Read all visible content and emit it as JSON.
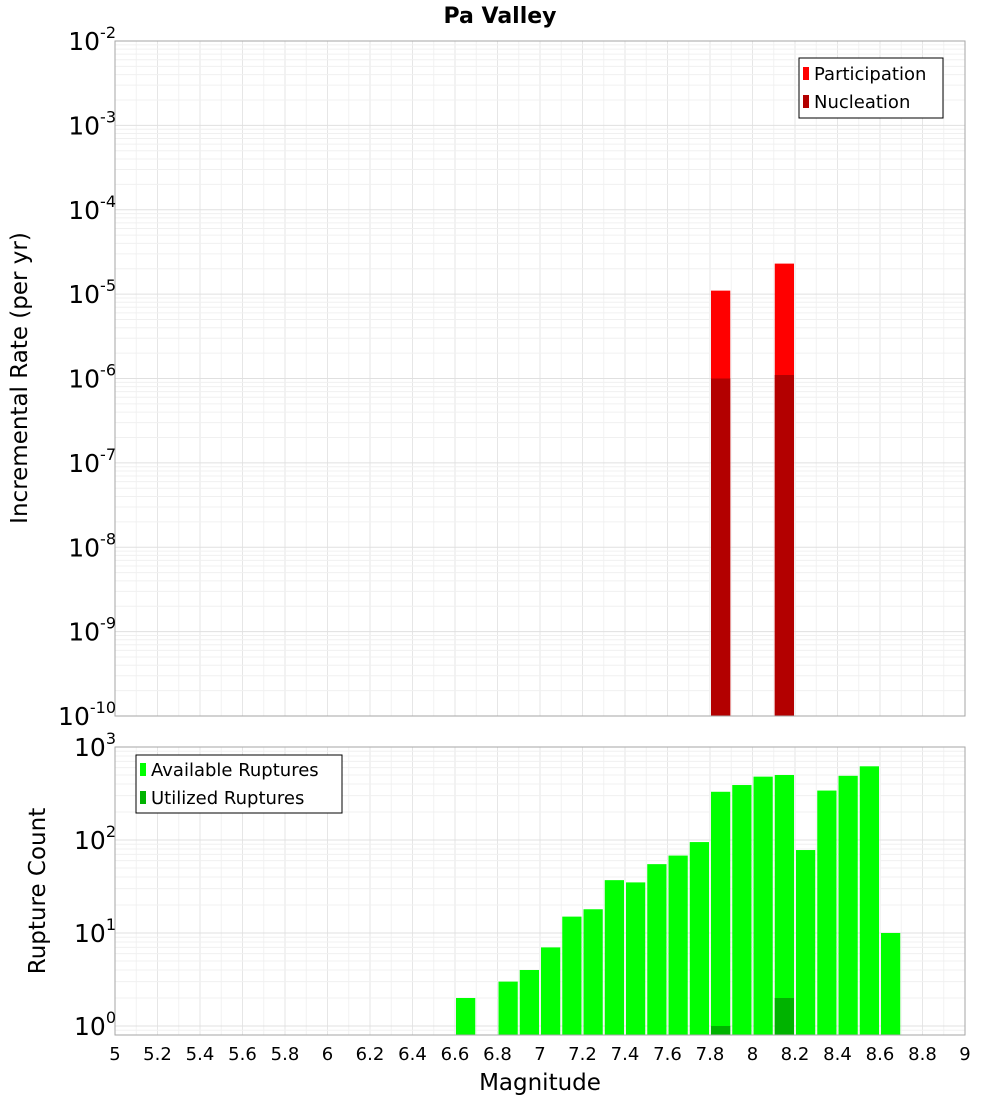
{
  "title": "Pa Valley",
  "xlabel": "Magnitude",
  "chart_data": [
    {
      "type": "bar",
      "name": "rate-panel",
      "title": "Pa Valley",
      "ylabel": "Incremental Rate (per yr)",
      "yscale": "log",
      "ylim": [
        1e-10,
        0.01
      ],
      "xlim": [
        5,
        9
      ],
      "bin_width": 0.1,
      "legend": "top-right",
      "grid": true,
      "series": [
        {
          "name": "Participation",
          "color": "#ff0000",
          "x": [
            7.85,
            8.15
          ],
          "values": [
            1.1e-05,
            2.3e-05
          ]
        },
        {
          "name": "Nucleation",
          "color": "#b30000",
          "x": [
            7.85,
            8.15
          ],
          "values": [
            1e-06,
            1.1e-06
          ]
        }
      ]
    },
    {
      "type": "bar",
      "name": "count-panel",
      "ylabel": "Rupture Count",
      "yscale": "log",
      "ylim": [
        0.8,
        1000
      ],
      "xlim": [
        5,
        9
      ],
      "bin_width": 0.1,
      "legend": "top-left",
      "grid": true,
      "series": [
        {
          "name": "Available Ruptures",
          "color": "#00ff00",
          "x": [
            6.65,
            6.85,
            6.95,
            7.05,
            7.15,
            7.25,
            7.35,
            7.45,
            7.55,
            7.65,
            7.75,
            7.85,
            7.95,
            8.05,
            8.15,
            8.25,
            8.35,
            8.45,
            8.55,
            8.65
          ],
          "values": [
            2,
            3,
            4,
            7,
            15,
            18,
            37,
            35,
            55,
            68,
            95,
            330,
            390,
            480,
            500,
            78,
            340,
            490,
            620,
            10
          ]
        },
        {
          "name": "Utilized Ruptures",
          "color": "#00b300",
          "x": [
            7.85,
            8.15
          ],
          "values": [
            1,
            2
          ]
        }
      ]
    }
  ],
  "axes": {
    "x_ticks": [
      "5",
      "5.2",
      "5.4",
      "5.6",
      "5.8",
      "6",
      "6.2",
      "6.4",
      "6.6",
      "6.8",
      "7",
      "7.2",
      "7.4",
      "7.6",
      "7.8",
      "8",
      "8.2",
      "8.4",
      "8.6",
      "8.8",
      "9"
    ],
    "top_y_ticks": [
      {
        "base": "10",
        "exp": "-2"
      },
      {
        "base": "10",
        "exp": "-3"
      },
      {
        "base": "10",
        "exp": "-4"
      },
      {
        "base": "10",
        "exp": "-5"
      },
      {
        "base": "10",
        "exp": "-6"
      },
      {
        "base": "10",
        "exp": "-7"
      },
      {
        "base": "10",
        "exp": "-8"
      },
      {
        "base": "10",
        "exp": "-9"
      },
      {
        "base": "10",
        "exp": "-10"
      }
    ],
    "bottom_y_ticks": [
      {
        "base": "10",
        "exp": "3"
      },
      {
        "base": "10",
        "exp": "2"
      },
      {
        "base": "10",
        "exp": "1"
      },
      {
        "base": "10",
        "exp": "0"
      }
    ]
  }
}
